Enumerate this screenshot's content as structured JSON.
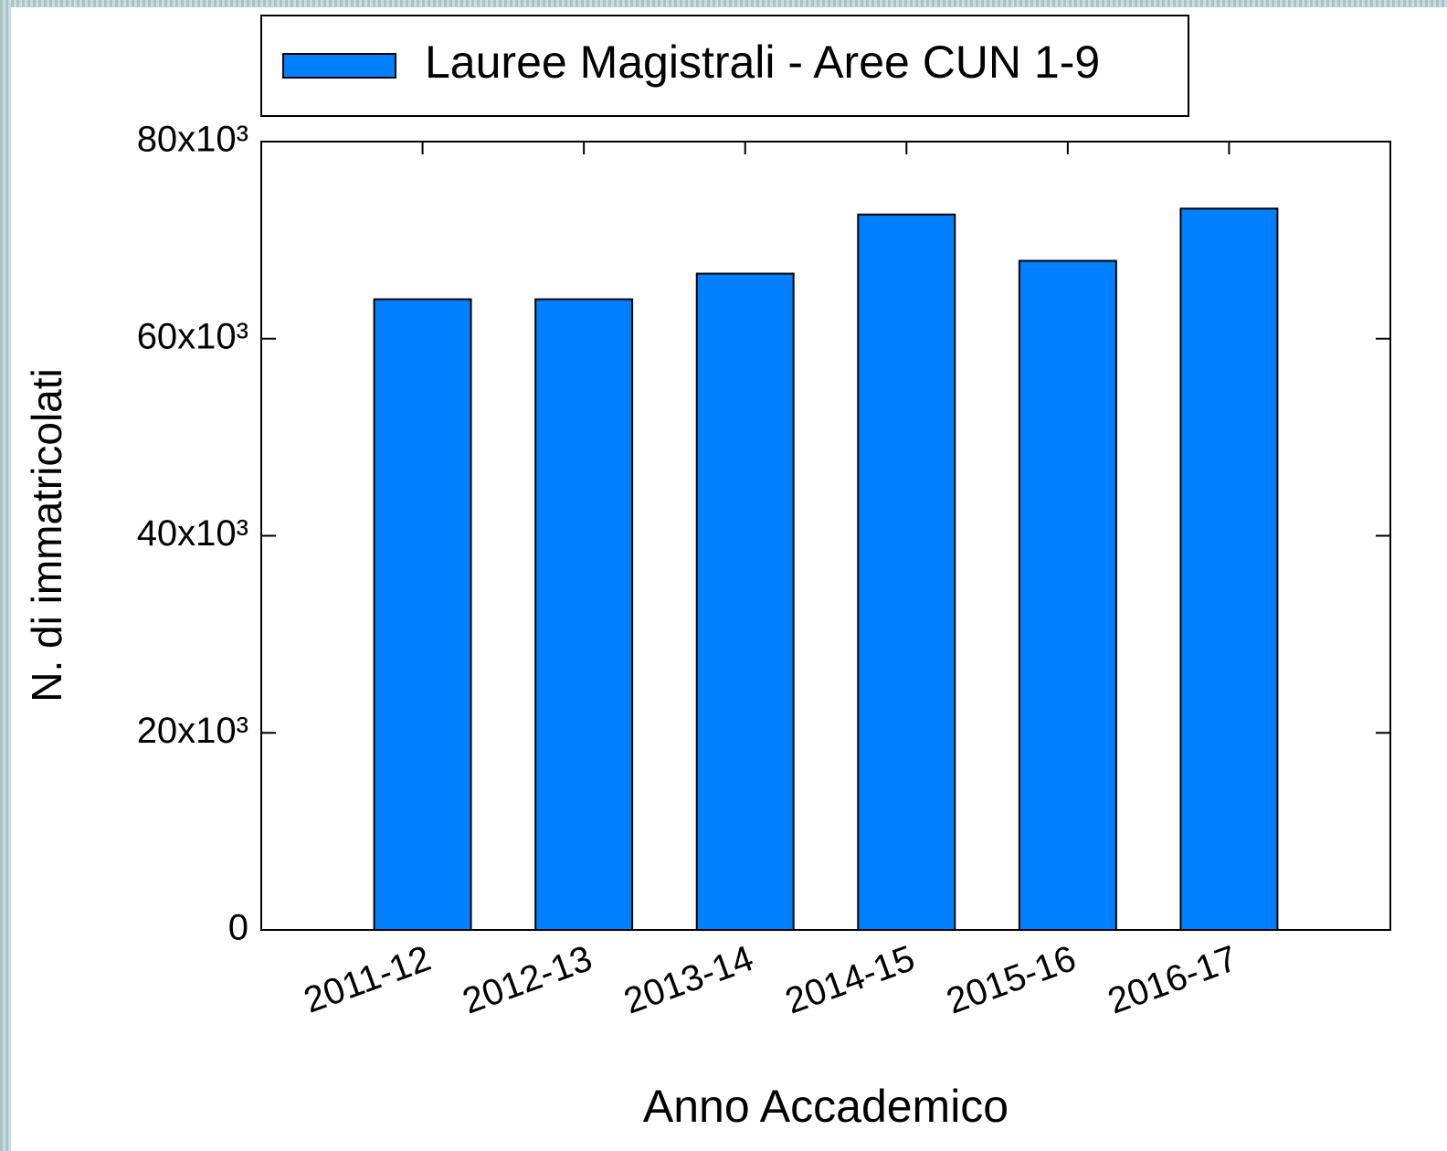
{
  "chart_data": {
    "type": "bar",
    "legend": "Lauree Magistrali - Aree CUN 1-9",
    "xlabel": "Anno Accademico",
    "ylabel": "N. di immatricolati",
    "categories": [
      "2011-12",
      "2012-13",
      "2013-14",
      "2014-15",
      "2015-16",
      "2016-17"
    ],
    "values": [
      64000,
      64000,
      66600,
      72600,
      67900,
      73200
    ],
    "color": "#0080ff",
    "ylim": [
      0,
      80000
    ],
    "yticks": [
      0,
      {
        "value": 20000,
        "label": "20x10³"
      },
      {
        "value": 40000,
        "label": "40x10³"
      },
      {
        "value": 60000,
        "label": "60x10³"
      },
      {
        "value": 80000,
        "label": "80x10³"
      }
    ],
    "grid": false
  }
}
